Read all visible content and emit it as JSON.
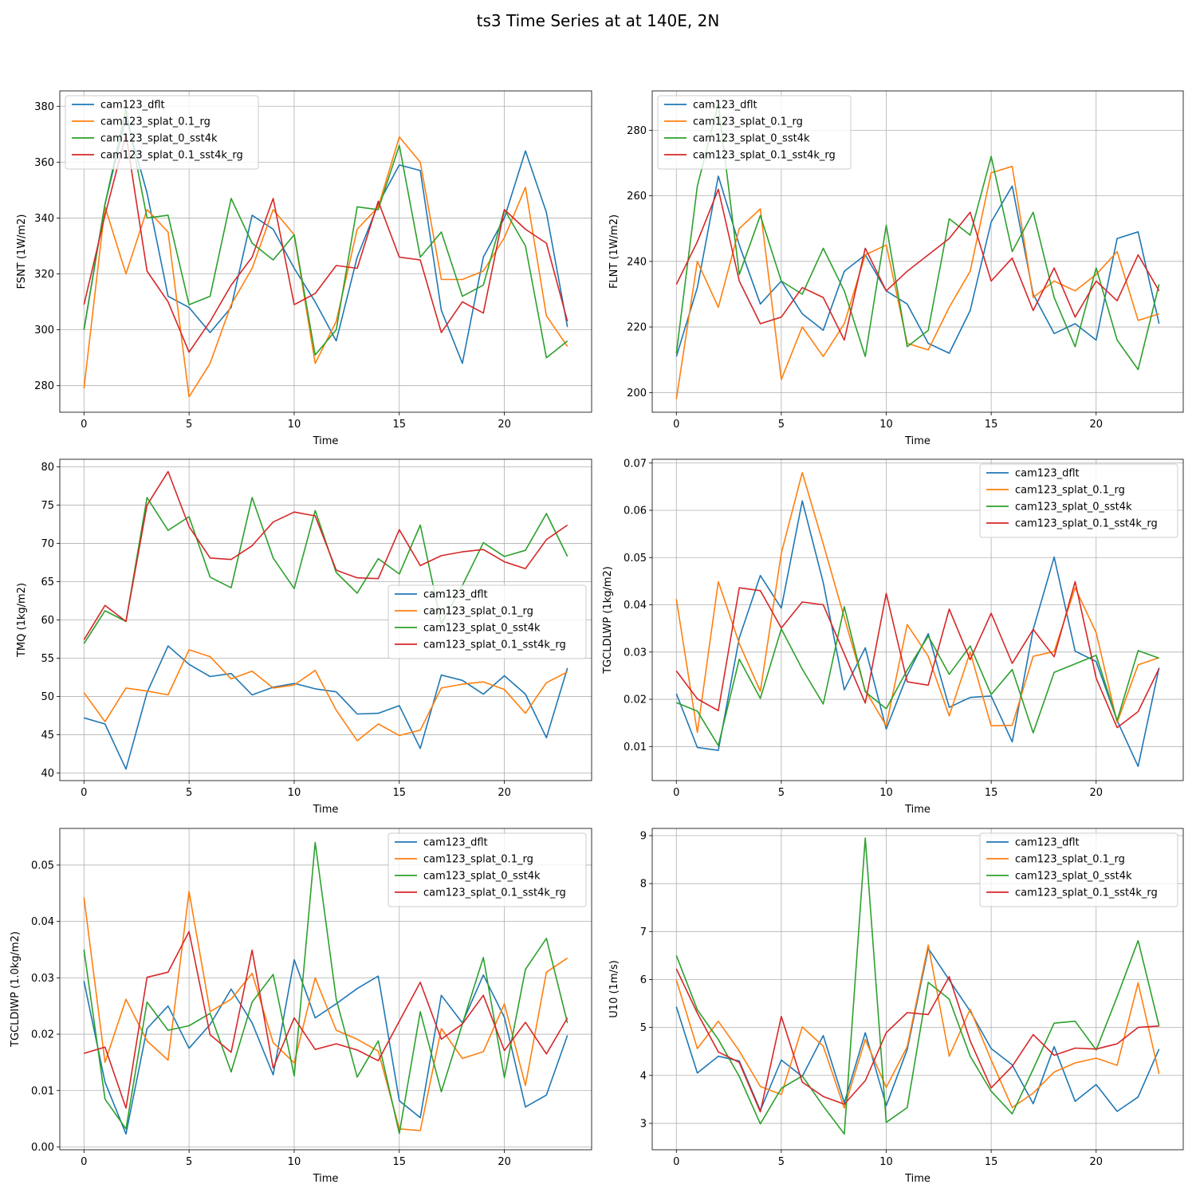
{
  "figure": {
    "title": "ts3 Time Series at at 140E, 2N"
  },
  "series_colors": [
    "#1f77b4",
    "#ff7f0e",
    "#2ca02c",
    "#d62728"
  ],
  "chart_data": [
    {
      "type": "line",
      "ylabel": "FSNT (1W/m2)",
      "xlabel": "Time",
      "ylim": [
        270.5,
        385.5
      ],
      "yticks": [
        280,
        300,
        320,
        340,
        360,
        380
      ],
      "ytick_labels": [
        "280",
        "300",
        "320",
        "340",
        "360",
        "380"
      ],
      "xlim": [
        -1.15,
        24.15
      ],
      "xticks": [
        0,
        5,
        10,
        15,
        20
      ],
      "xtick_labels": [
        "0",
        "5",
        "10",
        "15",
        "20"
      ],
      "legend": "upper-left",
      "x": [
        0,
        1,
        2,
        3,
        4,
        5,
        6,
        7,
        8,
        9,
        10,
        11,
        12,
        13,
        14,
        15,
        16,
        17,
        18,
        19,
        20,
        21,
        22,
        23
      ],
      "series": [
        {
          "name": "cam123_dflt",
          "values": [
            300,
            345,
            376,
            349,
            312,
            308,
            299,
            308,
            341,
            336,
            322,
            310,
            296,
            326,
            345,
            359,
            357,
            307,
            288,
            326,
            340,
            364,
            342,
            301
          ]
        },
        {
          "name": "cam123_splat_0.1_rg",
          "values": [
            279,
            344,
            320,
            343,
            335,
            276,
            288,
            309,
            322,
            343,
            334,
            288,
            303,
            336,
            344,
            369,
            360,
            318,
            318,
            321,
            333,
            351,
            305,
            294
          ]
        },
        {
          "name": "cam123_splat_0_sst4k",
          "values": [
            300,
            345,
            379,
            340,
            341,
            309,
            312,
            347,
            331,
            325,
            334,
            291,
            300,
            344,
            343,
            366,
            326,
            335,
            312,
            316,
            343,
            330,
            290,
            296
          ]
        },
        {
          "name": "cam123_splat_0.1_sst4k_rg",
          "values": [
            309,
            341,
            370,
            321,
            310,
            292,
            303,
            316,
            326,
            347,
            309,
            313,
            323,
            322,
            346,
            326,
            325,
            299,
            310,
            306,
            343,
            336,
            331,
            303
          ]
        }
      ]
    },
    {
      "type": "line",
      "ylabel": "FLNT (1W/m2)",
      "xlabel": "Time",
      "ylim": [
        194,
        292
      ],
      "yticks": [
        200,
        220,
        240,
        260,
        280
      ],
      "ytick_labels": [
        "200",
        "220",
        "240",
        "260",
        "280"
      ],
      "xlim": [
        -1.15,
        24.15
      ],
      "xticks": [
        0,
        5,
        10,
        15,
        20
      ],
      "xtick_labels": [
        "0",
        "5",
        "10",
        "15",
        "20"
      ],
      "legend": "upper-left",
      "x": [
        0,
        1,
        2,
        3,
        4,
        5,
        6,
        7,
        8,
        9,
        10,
        11,
        12,
        13,
        14,
        15,
        16,
        17,
        18,
        19,
        20,
        21,
        22,
        23
      ],
      "series": [
        {
          "name": "cam123_dflt",
          "values": [
            211,
            232,
            266,
            245,
            227,
            234,
            224,
            219,
            237,
            242,
            231,
            227,
            215,
            212,
            225,
            252,
            263,
            230,
            218,
            221,
            216,
            247,
            249,
            221
          ]
        },
        {
          "name": "cam123_splat_0.1_rg",
          "values": [
            198,
            240,
            226,
            250,
            256,
            204,
            220,
            211,
            221,
            242,
            245,
            215,
            213,
            226,
            237,
            267,
            269,
            229,
            234,
            231,
            236,
            243,
            222,
            224
          ]
        },
        {
          "name": "cam123_splat_0_sst4k",
          "values": [
            212,
            263,
            288,
            236,
            254,
            234,
            230,
            244,
            231,
            211,
            251,
            214,
            219,
            253,
            248,
            272,
            243,
            255,
            229,
            214,
            238,
            216,
            207,
            233
          ]
        },
        {
          "name": "cam123_splat_0.1_sst4k_rg",
          "values": [
            233,
            246,
            262,
            234,
            221,
            223,
            232,
            229,
            216,
            244,
            231,
            237,
            242,
            247,
            255,
            234,
            241,
            225,
            238,
            223,
            234,
            228,
            242,
            231
          ]
        }
      ]
    },
    {
      "type": "line",
      "ylabel": "TMQ (1kg/m2)",
      "xlabel": "Time",
      "ylim": [
        39,
        81
      ],
      "yticks": [
        40,
        45,
        50,
        55,
        60,
        65,
        70,
        75,
        80
      ],
      "ytick_labels": [
        "40",
        "45",
        "50",
        "55",
        "60",
        "65",
        "70",
        "75",
        "80"
      ],
      "xlim": [
        -1.15,
        24.15
      ],
      "xticks": [
        0,
        5,
        10,
        15,
        20
      ],
      "xtick_labels": [
        "0",
        "5",
        "10",
        "15",
        "20"
      ],
      "legend": "center-right",
      "x": [
        0,
        1,
        2,
        3,
        4,
        5,
        6,
        7,
        8,
        9,
        10,
        11,
        12,
        13,
        14,
        15,
        16,
        17,
        18,
        19,
        20,
        21,
        22,
        23
      ],
      "series": [
        {
          "name": "cam123_dflt",
          "values": [
            47.2,
            46.4,
            40.5,
            50.5,
            56.6,
            54.2,
            52.6,
            53.0,
            50.2,
            51.2,
            51.7,
            51.0,
            50.6,
            47.7,
            47.8,
            48.8,
            43.2,
            52.8,
            52.1,
            50.3,
            52.7,
            50.3,
            44.6,
            53.7
          ]
        },
        {
          "name": "cam123_splat_0.1_rg",
          "values": [
            50.5,
            46.7,
            51.1,
            50.7,
            50.2,
            56.1,
            55.2,
            52.3,
            53.3,
            51.1,
            51.5,
            53.4,
            48.2,
            44.2,
            46.4,
            44.9,
            45.6,
            51.1,
            51.6,
            51.9,
            50.9,
            47.8,
            51.8,
            53.2
          ]
        },
        {
          "name": "cam123_splat_0_sst4k",
          "values": [
            56.9,
            61.2,
            59.8,
            76.0,
            71.7,
            73.5,
            65.6,
            64.2,
            76.0,
            68.1,
            64.1,
            74.3,
            66.2,
            63.5,
            68.0,
            66.0,
            72.4,
            59.5,
            64.5,
            70.1,
            68.3,
            69.1,
            73.9,
            68.3
          ]
        },
        {
          "name": "cam123_splat_0.1_sst4k_rg",
          "values": [
            57.4,
            61.9,
            59.8,
            75.0,
            79.4,
            72.2,
            68.1,
            67.9,
            69.7,
            72.8,
            74.1,
            73.6,
            66.5,
            65.5,
            65.4,
            71.8,
            67.1,
            68.4,
            68.9,
            69.2,
            67.6,
            66.7,
            70.5,
            72.4
          ]
        }
      ]
    },
    {
      "type": "line",
      "ylabel": "TGCLDLWP (1kg/m2)",
      "xlabel": "Time",
      "ylim": [
        0.0028,
        0.0708
      ],
      "yticks": [
        0.01,
        0.02,
        0.03,
        0.04,
        0.05,
        0.06,
        0.07
      ],
      "ytick_labels": [
        "0.01",
        "0.02",
        "0.03",
        "0.04",
        "0.05",
        "0.06",
        "0.07"
      ],
      "xlim": [
        -1.15,
        24.15
      ],
      "xticks": [
        0,
        5,
        10,
        15,
        20
      ],
      "xtick_labels": [
        "0",
        "5",
        "10",
        "15",
        "20"
      ],
      "legend": "upper-right",
      "x": [
        0,
        1,
        2,
        3,
        4,
        5,
        6,
        7,
        8,
        9,
        10,
        11,
        12,
        13,
        14,
        15,
        16,
        17,
        18,
        19,
        20,
        21,
        22,
        23
      ],
      "series": [
        {
          "name": "cam123_dflt",
          "values": [
            0.0212,
            0.0098,
            0.0092,
            0.033,
            0.0462,
            0.0393,
            0.062,
            0.0447,
            0.022,
            0.0309,
            0.0137,
            0.0251,
            0.0339,
            0.0183,
            0.0204,
            0.0207,
            0.011,
            0.0348,
            0.0501,
            0.0302,
            0.028,
            0.0155,
            0.0058,
            0.0267
          ]
        },
        {
          "name": "cam123_splat_0.1_rg",
          "values": [
            0.0412,
            0.013,
            0.0449,
            0.0318,
            0.0217,
            0.0509,
            0.068,
            0.0529,
            0.0373,
            0.0219,
            0.0144,
            0.0358,
            0.0291,
            0.0165,
            0.03,
            0.0144,
            0.0145,
            0.0291,
            0.0301,
            0.0436,
            0.0341,
            0.0151,
            0.0273,
            0.0288
          ]
        },
        {
          "name": "cam123_splat_0_sst4k",
          "values": [
            0.0193,
            0.0175,
            0.0102,
            0.0285,
            0.0202,
            0.0349,
            0.0264,
            0.019,
            0.0396,
            0.0216,
            0.018,
            0.0262,
            0.0334,
            0.0253,
            0.0313,
            0.021,
            0.0263,
            0.0129,
            0.0257,
            0.0275,
            0.0293,
            0.0155,
            0.0303,
            0.0287
          ]
        },
        {
          "name": "cam123_splat_0.1_sst4k_rg",
          "values": [
            0.026,
            0.0201,
            0.0176,
            0.0436,
            0.043,
            0.0351,
            0.0406,
            0.04,
            0.0296,
            0.0192,
            0.0424,
            0.0237,
            0.023,
            0.0391,
            0.0284,
            0.0382,
            0.0276,
            0.0348,
            0.029,
            0.0449,
            0.0245,
            0.014,
            0.0174,
            0.0265
          ]
        }
      ]
    },
    {
      "type": "line",
      "ylabel": "TGCLDIWP (1.0kg/m2)",
      "xlabel": "Time",
      "ylim": [
        -0.0005,
        0.0565
      ],
      "yticks": [
        0.0,
        0.01,
        0.02,
        0.03,
        0.04,
        0.05
      ],
      "ytick_labels": [
        "0.00",
        "0.01",
        "0.02",
        "0.03",
        "0.04",
        "0.05"
      ],
      "xlim": [
        -1.15,
        24.15
      ],
      "xticks": [
        0,
        5,
        10,
        15,
        20
      ],
      "xtick_labels": [
        "0",
        "5",
        "10",
        "15",
        "20"
      ],
      "legend": "upper-right",
      "x": [
        0,
        1,
        2,
        3,
        4,
        5,
        6,
        7,
        8,
        9,
        10,
        11,
        12,
        13,
        14,
        15,
        16,
        17,
        18,
        19,
        20,
        21,
        22,
        23
      ],
      "series": [
        {
          "name": "cam123_dflt",
          "values": [
            0.0294,
            0.0115,
            0.0023,
            0.021,
            0.025,
            0.0175,
            0.0217,
            0.028,
            0.022,
            0.0128,
            0.0332,
            0.0229,
            0.0254,
            0.0281,
            0.0303,
            0.0082,
            0.0052,
            0.0269,
            0.022,
            0.0305,
            0.023,
            0.0071,
            0.0092,
            0.0198
          ]
        },
        {
          "name": "cam123_splat_0.1_rg",
          "values": [
            0.0443,
            0.015,
            0.0262,
            0.0188,
            0.0154,
            0.0453,
            0.024,
            0.0262,
            0.0308,
            0.0185,
            0.0149,
            0.03,
            0.0207,
            0.0191,
            0.017,
            0.0032,
            0.0029,
            0.021,
            0.0157,
            0.0169,
            0.0254,
            0.0109,
            0.031,
            0.0335
          ]
        },
        {
          "name": "cam123_splat_0_sst4k",
          "values": [
            0.035,
            0.0085,
            0.0032,
            0.0257,
            0.0207,
            0.0215,
            0.0237,
            0.0133,
            0.0257,
            0.0306,
            0.0126,
            0.054,
            0.0262,
            0.0124,
            0.0188,
            0.0024,
            0.024,
            0.0098,
            0.0218,
            0.0336,
            0.0123,
            0.0315,
            0.037,
            0.022
          ]
        },
        {
          "name": "cam123_splat_0.1_sst4k_rg",
          "values": [
            0.0166,
            0.0177,
            0.0069,
            0.0301,
            0.031,
            0.0382,
            0.0199,
            0.0168,
            0.0349,
            0.014,
            0.0229,
            0.0173,
            0.0183,
            0.0172,
            0.0153,
            0.0223,
            0.0292,
            0.0191,
            0.0218,
            0.0269,
            0.0171,
            0.0221,
            0.0165,
            0.0229
          ]
        }
      ]
    },
    {
      "type": "line",
      "ylabel": "U10 (1m/s)",
      "xlabel": "Time",
      "ylim": [
        2.45,
        9.15
      ],
      "yticks": [
        3,
        4,
        5,
        6,
        7,
        8,
        9
      ],
      "ytick_labels": [
        "3",
        "4",
        "5",
        "6",
        "7",
        "8",
        "9"
      ],
      "xlim": [
        -1.15,
        24.15
      ],
      "xticks": [
        0,
        5,
        10,
        15,
        20
      ],
      "xtick_labels": [
        "0",
        "5",
        "10",
        "15",
        "20"
      ],
      "legend": "upper-right",
      "x": [
        0,
        1,
        2,
        3,
        4,
        5,
        6,
        7,
        8,
        9,
        10,
        11,
        12,
        13,
        14,
        15,
        16,
        17,
        18,
        19,
        20,
        21,
        22,
        23
      ],
      "series": [
        {
          "name": "cam123_dflt",
          "values": [
            5.43,
            4.05,
            4.4,
            4.3,
            3.27,
            4.32,
            3.98,
            4.83,
            3.43,
            4.89,
            3.37,
            4.54,
            6.65,
            5.99,
            5.34,
            4.56,
            4.22,
            3.41,
            4.6,
            3.46,
            3.81,
            3.25,
            3.55,
            4.55
          ]
        },
        {
          "name": "cam123_splat_0.1_rg",
          "values": [
            5.99,
            4.56,
            5.13,
            4.51,
            3.77,
            3.6,
            5.01,
            4.61,
            3.32,
            4.75,
            3.75,
            4.6,
            6.72,
            4.4,
            5.38,
            4.32,
            3.33,
            3.63,
            4.07,
            4.26,
            4.36,
            4.21,
            5.93,
            4.03
          ]
        },
        {
          "name": "cam123_splat_0_sst4k",
          "values": [
            6.5,
            5.37,
            4.75,
            3.98,
            2.99,
            3.73,
            3.99,
            3.36,
            2.78,
            8.95,
            3.02,
            3.33,
            5.94,
            5.59,
            4.4,
            3.67,
            3.2,
            4.13,
            5.09,
            5.13,
            4.53,
            5.64,
            6.81,
            5.03
          ]
        },
        {
          "name": "cam123_splat_0.1_sst4k_rg",
          "values": [
            6.22,
            5.3,
            4.49,
            4.27,
            3.24,
            5.23,
            3.86,
            3.56,
            3.4,
            3.89,
            4.89,
            5.31,
            5.27,
            6.06,
            4.72,
            3.74,
            4.19,
            4.85,
            4.42,
            4.57,
            4.55,
            4.66,
            5.0,
            5.03
          ]
        }
      ]
    }
  ]
}
